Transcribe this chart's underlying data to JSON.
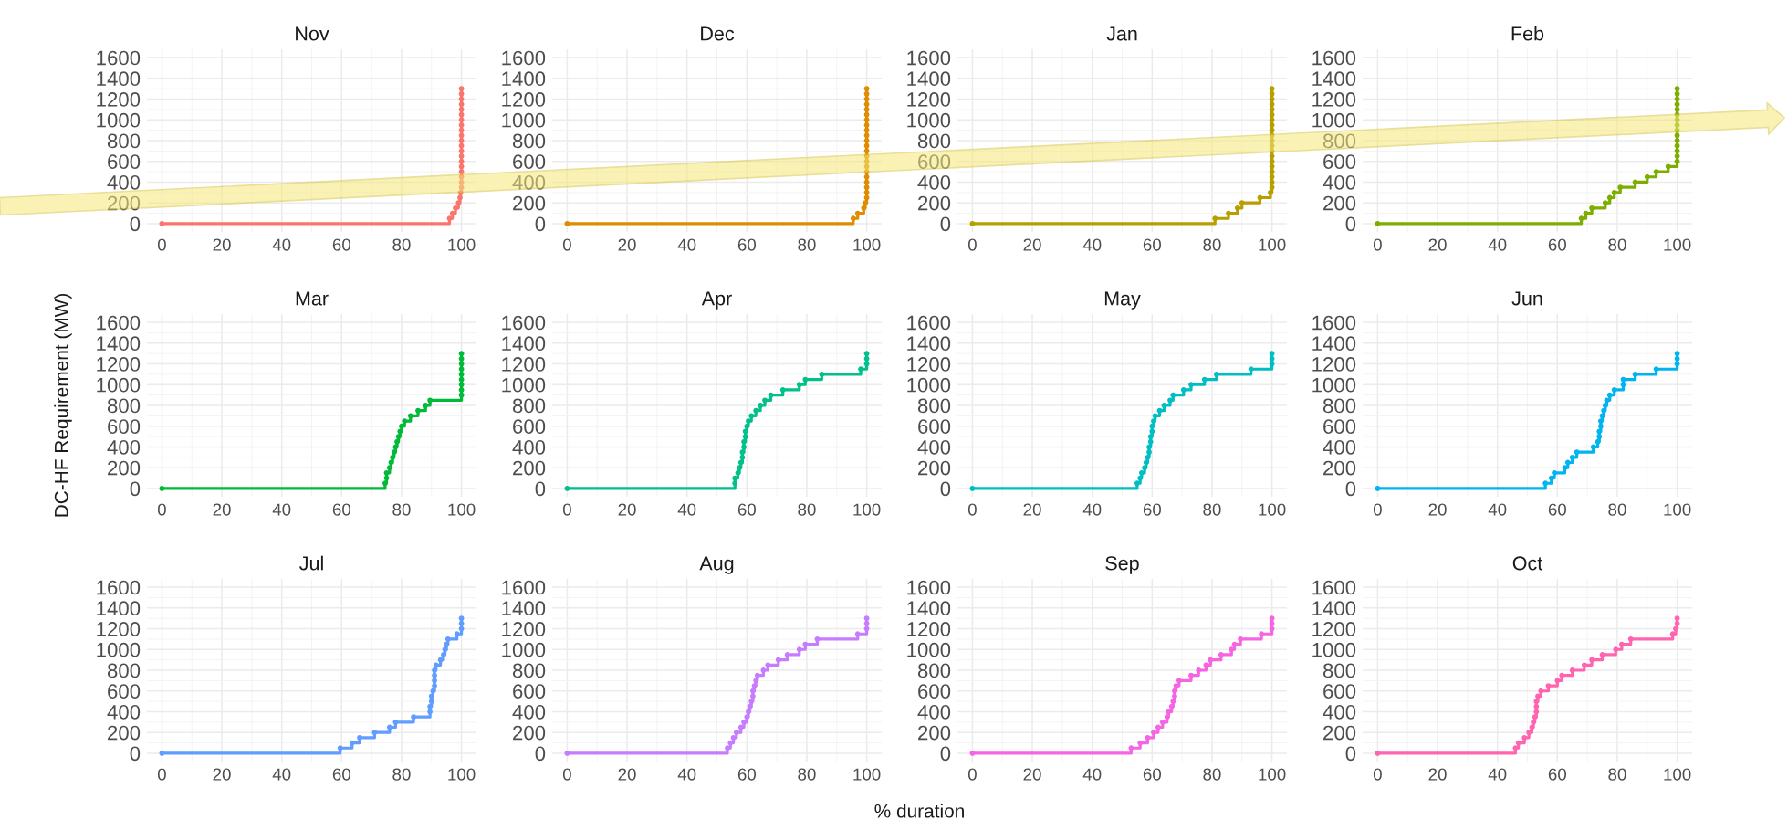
{
  "chart_data": [
    {
      "type": "step",
      "title": "Nov",
      "x": [
        0,
        96,
        97,
        98,
        99,
        99.5,
        99.7,
        100,
        100,
        100,
        100,
        100,
        100,
        100,
        100,
        100,
        100,
        100,
        100,
        100,
        100,
        100,
        100,
        100,
        100,
        100,
        100
      ],
      "series": [
        {
          "color": "#f8766d",
          "values": [
            0,
            50,
            100,
            150,
            200,
            250,
            300,
            350,
            400,
            450,
            500,
            550,
            600,
            650,
            700,
            750,
            800,
            850,
            900,
            950,
            1000,
            1050,
            1100,
            1150,
            1200,
            1250,
            1300
          ]
        }
      ],
      "xlim": [
        -5,
        105
      ],
      "ylim": [
        -80,
        1680
      ],
      "xticks": [
        0,
        20,
        40,
        60,
        80,
        100
      ],
      "yticks": [
        0,
        200,
        400,
        600,
        800,
        1000,
        1200,
        1400,
        1600
      ],
      "grid": true,
      "marker": "circle",
      "line_style": "solid"
    },
    {
      "type": "step",
      "title": "Dec",
      "x": [
        0,
        95.5,
        97,
        99,
        99.5,
        100,
        100,
        100,
        100,
        100,
        100,
        100,
        100,
        100,
        100,
        100,
        100,
        100,
        100,
        100,
        100,
        100,
        100,
        100,
        100,
        100,
        100
      ],
      "series": [
        {
          "color": "#de8c00",
          "values": [
            0,
            50,
            100,
            150,
            200,
            250,
            300,
            350,
            400,
            450,
            500,
            550,
            600,
            650,
            700,
            750,
            800,
            850,
            900,
            950,
            1000,
            1050,
            1100,
            1150,
            1200,
            1250,
            1300
          ]
        }
      ],
      "xlim": [
        -5,
        105
      ],
      "ylim": [
        -80,
        1680
      ],
      "xticks": [
        0,
        20,
        40,
        60,
        80,
        100
      ],
      "yticks": [
        0,
        200,
        400,
        600,
        800,
        1000,
        1200,
        1400,
        1600
      ],
      "grid": true,
      "marker": "circle",
      "line_style": "solid"
    },
    {
      "type": "step",
      "title": "Jan",
      "x": [
        0,
        81,
        85.5,
        88.5,
        90,
        96,
        99.5,
        100,
        100,
        100,
        100,
        100,
        100,
        100,
        100,
        100,
        100,
        100,
        100,
        100,
        100,
        100,
        100,
        100,
        100,
        100,
        100
      ],
      "series": [
        {
          "color": "#b79f00",
          "values": [
            0,
            50,
            100,
            150,
            200,
            250,
            300,
            350,
            400,
            450,
            500,
            550,
            600,
            650,
            700,
            750,
            800,
            850,
            900,
            950,
            1000,
            1050,
            1100,
            1150,
            1200,
            1250,
            1300
          ]
        }
      ],
      "xlim": [
        -5,
        105
      ],
      "ylim": [
        -80,
        1680
      ],
      "xticks": [
        0,
        20,
        40,
        60,
        80,
        100
      ],
      "yticks": [
        0,
        200,
        400,
        600,
        800,
        1000,
        1200,
        1400,
        1600
      ],
      "grid": true,
      "marker": "circle",
      "line_style": "solid"
    },
    {
      "type": "step",
      "title": "Feb",
      "x": [
        0,
        68,
        69.5,
        71.5,
        76,
        77.5,
        79,
        81,
        86,
        90,
        93,
        97,
        100,
        100,
        100,
        100,
        100,
        100,
        100,
        100,
        100,
        100,
        100,
        100,
        100,
        100,
        100
      ],
      "series": [
        {
          "color": "#7cae00",
          "values": [
            0,
            50,
            100,
            150,
            200,
            250,
            300,
            350,
            400,
            450,
            500,
            550,
            600,
            650,
            700,
            750,
            800,
            850,
            900,
            950,
            1000,
            1050,
            1100,
            1150,
            1200,
            1250,
            1300
          ]
        }
      ],
      "xlim": [
        -5,
        105
      ],
      "ylim": [
        -80,
        1680
      ],
      "xticks": [
        0,
        20,
        40,
        60,
        80,
        100
      ],
      "yticks": [
        0,
        200,
        400,
        600,
        800,
        1000,
        1200,
        1400,
        1600
      ],
      "grid": true,
      "marker": "circle",
      "line_style": "solid"
    },
    {
      "type": "step",
      "title": "Mar",
      "ylabel": "DC-HF Requirement (MW)",
      "x": [
        0,
        74.5,
        75,
        75,
        76,
        76.5,
        77,
        77.5,
        78,
        78.5,
        79,
        79.5,
        80,
        81,
        83,
        85.5,
        88,
        89.5,
        100,
        100,
        100,
        100,
        100,
        100,
        100,
        100,
        100
      ],
      "series": [
        {
          "color": "#00ba38",
          "values": [
            0,
            50,
            100,
            150,
            200,
            250,
            300,
            350,
            400,
            450,
            500,
            550,
            600,
            650,
            700,
            750,
            800,
            850,
            900,
            950,
            1000,
            1050,
            1100,
            1150,
            1200,
            1250,
            1300
          ]
        }
      ],
      "xlim": [
        -5,
        105
      ],
      "ylim": [
        -80,
        1680
      ],
      "xticks": [
        0,
        20,
        40,
        60,
        80,
        100
      ],
      "yticks": [
        0,
        200,
        400,
        600,
        800,
        1000,
        1200,
        1400,
        1600
      ],
      "grid": true,
      "marker": "circle",
      "line_style": "solid"
    },
    {
      "type": "step",
      "title": "Apr",
      "x": [
        0,
        56,
        56,
        57,
        57.5,
        58,
        58.5,
        58.5,
        59,
        59,
        59.5,
        59.5,
        60,
        60.5,
        61.5,
        63,
        64.5,
        66,
        68,
        72,
        77.5,
        79.5,
        85,
        98,
        100,
        100,
        100
      ],
      "series": [
        {
          "color": "#00c08b",
          "values": [
            0,
            50,
            100,
            150,
            200,
            250,
            300,
            350,
            400,
            450,
            500,
            550,
            600,
            650,
            700,
            750,
            800,
            850,
            900,
            950,
            1000,
            1050,
            1100,
            1150,
            1200,
            1250,
            1300
          ]
        }
      ],
      "xlim": [
        -5,
        105
      ],
      "ylim": [
        -80,
        1680
      ],
      "xticks": [
        0,
        20,
        40,
        60,
        80,
        100
      ],
      "yticks": [
        0,
        200,
        400,
        600,
        800,
        1000,
        1200,
        1400,
        1600
      ],
      "grid": true,
      "marker": "circle",
      "line_style": "solid"
    },
    {
      "type": "step",
      "title": "May",
      "x": [
        0,
        55,
        56,
        56.5,
        57.5,
        58,
        58.5,
        59,
        59,
        59.5,
        59.5,
        60,
        60,
        60.5,
        61,
        62.5,
        64,
        66,
        67,
        70.5,
        73,
        77.5,
        81.5,
        93,
        100,
        100,
        100
      ],
      "series": [
        {
          "color": "#00bfc4",
          "values": [
            0,
            50,
            100,
            150,
            200,
            250,
            300,
            350,
            400,
            450,
            500,
            550,
            600,
            650,
            700,
            750,
            800,
            850,
            900,
            950,
            1000,
            1050,
            1100,
            1150,
            1200,
            1250,
            1300
          ]
        }
      ],
      "xlim": [
        -5,
        105
      ],
      "ylim": [
        -80,
        1680
      ],
      "xticks": [
        0,
        20,
        40,
        60,
        80,
        100
      ],
      "yticks": [
        0,
        200,
        400,
        600,
        800,
        1000,
        1200,
        1400,
        1600
      ],
      "grid": true,
      "marker": "circle",
      "line_style": "solid"
    },
    {
      "type": "step",
      "title": "Jun",
      "x": [
        0,
        56,
        58,
        59,
        62.5,
        63.5,
        65,
        66.5,
        72,
        73.5,
        74,
        74,
        74.5,
        74.5,
        75,
        75.5,
        76,
        76.5,
        77.5,
        79,
        82,
        82,
        86,
        93,
        100,
        100,
        100
      ],
      "series": [
        {
          "color": "#00b4f0",
          "values": [
            0,
            50,
            100,
            150,
            200,
            250,
            300,
            350,
            400,
            450,
            500,
            550,
            600,
            650,
            700,
            750,
            800,
            850,
            900,
            950,
            1000,
            1050,
            1100,
            1150,
            1200,
            1250,
            1300
          ]
        }
      ],
      "xlim": [
        -5,
        105
      ],
      "ylim": [
        -80,
        1680
      ],
      "xticks": [
        0,
        20,
        40,
        60,
        80,
        100
      ],
      "yticks": [
        0,
        200,
        400,
        600,
        800,
        1000,
        1200,
        1400,
        1600
      ],
      "grid": true,
      "marker": "circle",
      "line_style": "solid"
    },
    {
      "type": "step",
      "title": "Jul",
      "x": [
        0,
        59.5,
        63.5,
        66,
        71,
        76,
        78,
        84,
        89.5,
        89.5,
        90,
        90,
        90.5,
        91,
        91,
        91,
        91,
        91.5,
        93,
        94,
        94.5,
        95,
        95.5,
        98.5,
        100,
        100,
        100
      ],
      "series": [
        {
          "color": "#619cff",
          "values": [
            0,
            50,
            100,
            150,
            200,
            250,
            300,
            350,
            400,
            450,
            500,
            550,
            600,
            650,
            700,
            750,
            800,
            850,
            900,
            950,
            1000,
            1050,
            1100,
            1150,
            1200,
            1250,
            1300
          ]
        }
      ],
      "xlim": [
        -5,
        105
      ],
      "ylim": [
        -80,
        1680
      ],
      "xticks": [
        0,
        20,
        40,
        60,
        80,
        100
      ],
      "yticks": [
        0,
        200,
        400,
        600,
        800,
        1000,
        1200,
        1400,
        1600
      ],
      "grid": true,
      "marker": "circle",
      "line_style": "solid"
    },
    {
      "type": "step",
      "title": "Aug",
      "xlabel": "% duration",
      "x": [
        0,
        53.5,
        54.5,
        55.5,
        56.5,
        58,
        59,
        60,
        60.5,
        61,
        61.5,
        62,
        62,
        62.5,
        63,
        63.5,
        65.5,
        67,
        70.5,
        73.5,
        77.5,
        79.5,
        83.5,
        97,
        100,
        100,
        100
      ],
      "series": [
        {
          "color": "#c77cff",
          "values": [
            0,
            50,
            100,
            150,
            200,
            250,
            300,
            350,
            400,
            450,
            500,
            550,
            600,
            650,
            700,
            750,
            800,
            850,
            900,
            950,
            1000,
            1050,
            1100,
            1150,
            1200,
            1250,
            1300
          ]
        }
      ],
      "xlim": [
        -5,
        105
      ],
      "ylim": [
        -80,
        1680
      ],
      "xticks": [
        0,
        20,
        40,
        60,
        80,
        100
      ],
      "yticks": [
        0,
        200,
        400,
        600,
        800,
        1000,
        1200,
        1400,
        1600
      ],
      "grid": true,
      "marker": "circle",
      "line_style": "solid"
    },
    {
      "type": "step",
      "title": "Sep",
      "x": [
        0,
        53,
        56,
        58.5,
        60.5,
        62,
        63.5,
        65,
        65.5,
        66.5,
        67,
        67.5,
        67.5,
        68,
        69,
        73,
        75.5,
        78,
        79.5,
        83,
        86.5,
        87.5,
        89.5,
        96.5,
        100,
        100,
        100
      ],
      "series": [
        {
          "color": "#f564e3",
          "values": [
            0,
            50,
            100,
            150,
            200,
            250,
            300,
            350,
            400,
            450,
            500,
            550,
            600,
            650,
            700,
            750,
            800,
            850,
            900,
            950,
            1000,
            1050,
            1100,
            1150,
            1200,
            1250,
            1300
          ]
        }
      ],
      "xlim": [
        -5,
        105
      ],
      "ylim": [
        -80,
        1680
      ],
      "xticks": [
        0,
        20,
        40,
        60,
        80,
        100
      ],
      "yticks": [
        0,
        200,
        400,
        600,
        800,
        1000,
        1200,
        1400,
        1600
      ],
      "grid": true,
      "marker": "circle",
      "line_style": "solid"
    },
    {
      "type": "step",
      "title": "Oct",
      "x": [
        0,
        46,
        47,
        49,
        50.5,
        51.5,
        52,
        52.5,
        53,
        53,
        53,
        53.5,
        54.5,
        57,
        60,
        61.5,
        65,
        69,
        71.5,
        75,
        79.5,
        81.5,
        84.5,
        98.5,
        99.5,
        100,
        100
      ],
      "series": [
        {
          "color": "#ff64b0",
          "values": [
            0,
            50,
            100,
            150,
            200,
            250,
            300,
            350,
            400,
            450,
            500,
            550,
            600,
            650,
            700,
            750,
            800,
            850,
            900,
            950,
            1000,
            1050,
            1100,
            1150,
            1200,
            1250,
            1300
          ]
        }
      ],
      "xlim": [
        -5,
        105
      ],
      "ylim": [
        -80,
        1680
      ],
      "xticks": [
        0,
        20,
        40,
        60,
        80,
        100
      ],
      "yticks": [
        0,
        200,
        400,
        600,
        800,
        1000,
        1200,
        1400,
        1600
      ],
      "grid": true,
      "marker": "circle",
      "line_style": "solid"
    }
  ]
}
